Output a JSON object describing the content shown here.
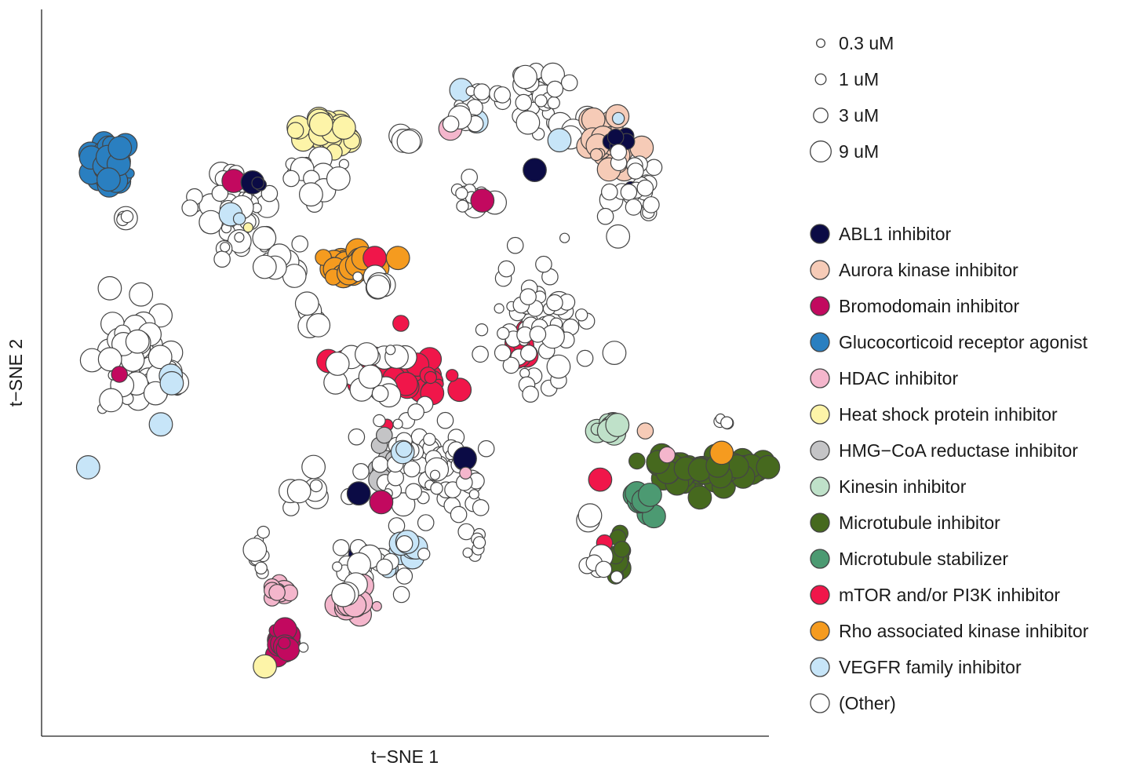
{
  "chart_data": {
    "type": "scatter",
    "xlabel": "t−SNE 1",
    "ylabel": "t−SNE 2",
    "xlim": [
      0,
      1000
    ],
    "ylim": [
      0,
      1000
    ],
    "grid": false,
    "legend_position": "right",
    "size_legend": [
      {
        "label": "0.3 uM",
        "dose": 0.3
      },
      {
        "label": "1 uM",
        "dose": 1
      },
      {
        "label": "3 uM",
        "dose": 3
      },
      {
        "label": "9 uM",
        "dose": 9
      }
    ],
    "classes": [
      {
        "name": "ABL1 inhibitor",
        "color": "#0b0b45"
      },
      {
        "name": "Aurora kinase inhibitor",
        "color": "#f6cbb7"
      },
      {
        "name": "Bromodomain inhibitor",
        "color": "#c2095f"
      },
      {
        "name": "Glucocorticoid receptor agonist",
        "color": "#2a7fc0"
      },
      {
        "name": "HDAC inhibitor",
        "color": "#f4b6cc"
      },
      {
        "name": "Heat shock protein inhibitor",
        "color": "#fdf4a8"
      },
      {
        "name": "HMG−CoA reductase inhibitor",
        "color": "#c4c4c6"
      },
      {
        "name": "Kinesin inhibitor",
        "color": "#bfe1c9"
      },
      {
        "name": "Microtubule inhibitor",
        "color": "#46691e"
      },
      {
        "name": "Microtubule stabilizer",
        "color": "#4c9a72"
      },
      {
        "name": "mTOR and/or PI3K inhibitor",
        "color": "#f0164a"
      },
      {
        "name": "Rho associated kinase inhibitor",
        "color": "#f59b1f"
      },
      {
        "name": "VEGFR family inhibitor",
        "color": "#c7e5f8"
      },
      {
        "name": "(Other)",
        "color": "#ffffff"
      }
    ],
    "clusters": [
      {
        "cls": 3,
        "x": 93,
        "y": 784,
        "sx": 14,
        "sy": 14,
        "n": 48,
        "dose": 9,
        "seed": 11
      },
      {
        "cls": 13,
        "x": 115,
        "y": 714,
        "sx": 3,
        "sy": 3,
        "n": 5,
        "dose": 1,
        "seed": 12
      },
      {
        "cls": 5,
        "x": 390,
        "y": 826,
        "sx": 20,
        "sy": 10,
        "n": 34,
        "dose": 9,
        "seed": 13
      },
      {
        "cls": 13,
        "x": 500,
        "y": 822,
        "sx": 12,
        "sy": 6,
        "n": 4,
        "dose": 9,
        "seed": 14
      },
      {
        "cls": 13,
        "x": 372,
        "y": 770,
        "sx": 16,
        "sy": 16,
        "n": 14,
        "dose": 9,
        "seed": 15
      },
      {
        "cls": 13,
        "x": 260,
        "y": 720,
        "sx": 38,
        "sy": 30,
        "n": 40,
        "dose": 3,
        "seed": 16
      },
      {
        "cls": 2,
        "x": 264,
        "y": 764,
        "sx": 2,
        "sy": 2,
        "n": 1,
        "dose": 9,
        "seed": 17
      },
      {
        "cls": 0,
        "x": 290,
        "y": 762,
        "sx": 2,
        "sy": 2,
        "n": 1,
        "dose": 9,
        "seed": 18
      },
      {
        "cls": 0,
        "x": 300,
        "y": 760,
        "sx": 3,
        "sy": 3,
        "n": 3,
        "dose": 1,
        "seed": 19
      },
      {
        "cls": 12,
        "x": 260,
        "y": 718,
        "sx": 2,
        "sy": 2,
        "n": 1,
        "dose": 9,
        "seed": 20
      },
      {
        "cls": 12,
        "x": 272,
        "y": 712,
        "sx": 3,
        "sy": 3,
        "n": 1,
        "dose": 9,
        "seed": 21
      },
      {
        "cls": 5,
        "x": 284,
        "y": 700,
        "sx": 2,
        "sy": 2,
        "n": 1,
        "dose": 3,
        "seed": 22
      },
      {
        "cls": 11,
        "x": 425,
        "y": 646,
        "sx": 26,
        "sy": 10,
        "n": 26,
        "dose": 9,
        "seed": 23
      },
      {
        "cls": 10,
        "x": 458,
        "y": 658,
        "sx": 2,
        "sy": 2,
        "n": 1,
        "dose": 9,
        "seed": 24
      },
      {
        "cls": 11,
        "x": 490,
        "y": 658,
        "sx": 2,
        "sy": 2,
        "n": 1,
        "dose": 9,
        "seed": 25
      },
      {
        "cls": 13,
        "x": 460,
        "y": 628,
        "sx": 12,
        "sy": 8,
        "n": 6,
        "dose": 9,
        "seed": 26
      },
      {
        "cls": 13,
        "x": 330,
        "y": 646,
        "sx": 12,
        "sy": 8,
        "n": 6,
        "dose": 9,
        "seed": 27
      },
      {
        "cls": 12,
        "x": 577,
        "y": 889,
        "sx": 2,
        "sy": 2,
        "n": 1,
        "dose": 9,
        "seed": 28
      },
      {
        "cls": 1,
        "x": 590,
        "y": 852,
        "sx": 4,
        "sy": 4,
        "n": 2,
        "dose": 9,
        "seed": 29
      },
      {
        "cls": 12,
        "x": 598,
        "y": 846,
        "sx": 2,
        "sy": 2,
        "n": 1,
        "dose": 9,
        "seed": 30
      },
      {
        "cls": 4,
        "x": 562,
        "y": 836,
        "sx": 2,
        "sy": 2,
        "n": 1,
        "dose": 9,
        "seed": 31
      },
      {
        "cls": 13,
        "x": 585,
        "y": 865,
        "sx": 18,
        "sy": 18,
        "n": 12,
        "dose": 3,
        "seed": 32
      },
      {
        "cls": 13,
        "x": 680,
        "y": 880,
        "sx": 30,
        "sy": 20,
        "n": 24,
        "dose": 3,
        "seed": 33
      },
      {
        "cls": 13,
        "x": 720,
        "y": 840,
        "sx": 20,
        "sy": 14,
        "n": 8,
        "dose": 9,
        "seed": 34
      },
      {
        "cls": 0,
        "x": 678,
        "y": 779,
        "sx": 2,
        "sy": 2,
        "n": 1,
        "dose": 9,
        "seed": 35
      },
      {
        "cls": 12,
        "x": 712,
        "y": 820,
        "sx": 2,
        "sy": 2,
        "n": 1,
        "dose": 9,
        "seed": 36
      },
      {
        "cls": 1,
        "x": 780,
        "y": 810,
        "sx": 18,
        "sy": 22,
        "n": 30,
        "dose": 9,
        "seed": 37
      },
      {
        "cls": 0,
        "x": 795,
        "y": 815,
        "sx": 8,
        "sy": 8,
        "n": 7,
        "dose": 3,
        "seed": 38
      },
      {
        "cls": 0,
        "x": 810,
        "y": 755,
        "sx": 2,
        "sy": 2,
        "n": 1,
        "dose": 1,
        "seed": 39
      },
      {
        "cls": 12,
        "x": 793,
        "y": 850,
        "sx": 2,
        "sy": 2,
        "n": 1,
        "dose": 9,
        "seed": 40
      },
      {
        "cls": 13,
        "x": 815,
        "y": 760,
        "sx": 20,
        "sy": 30,
        "n": 24,
        "dose": 3,
        "seed": 41
      },
      {
        "cls": 13,
        "x": 590,
        "y": 743,
        "sx": 12,
        "sy": 10,
        "n": 16,
        "dose": 1,
        "seed": 42
      },
      {
        "cls": 2,
        "x": 606,
        "y": 737,
        "sx": 2,
        "sy": 2,
        "n": 1,
        "dose": 9,
        "seed": 43
      },
      {
        "cls": 10,
        "x": 660,
        "y": 534,
        "sx": 6,
        "sy": 7,
        "n": 10,
        "dose": 9,
        "seed": 44
      },
      {
        "cls": 13,
        "x": 690,
        "y": 570,
        "sx": 40,
        "sy": 45,
        "n": 55,
        "dose": 3,
        "seed": 45
      },
      {
        "cls": 10,
        "x": 430,
        "y": 512,
        "sx": 18,
        "sy": 8,
        "n": 14,
        "dose": 9,
        "seed": 46
      },
      {
        "cls": 10,
        "x": 520,
        "y": 496,
        "sx": 22,
        "sy": 12,
        "n": 24,
        "dose": 9,
        "seed": 47
      },
      {
        "cls": 10,
        "x": 494,
        "y": 568,
        "sx": 2,
        "sy": 2,
        "n": 1,
        "dose": 3,
        "seed": 48
      },
      {
        "cls": 10,
        "x": 475,
        "y": 428,
        "sx": 2,
        "sy": 2,
        "n": 1,
        "dose": 1,
        "seed": 49
      },
      {
        "cls": 10,
        "x": 474,
        "y": 470,
        "sx": 2,
        "sy": 2,
        "n": 1,
        "dose": 3,
        "seed": 50
      },
      {
        "cls": 13,
        "x": 455,
        "y": 500,
        "sx": 28,
        "sy": 22,
        "n": 16,
        "dose": 9,
        "seed": 51
      },
      {
        "cls": 13,
        "x": 130,
        "y": 510,
        "sx": 30,
        "sy": 44,
        "n": 55,
        "dose": 9,
        "seed": 52
      },
      {
        "cls": 2,
        "x": 107,
        "y": 498,
        "sx": 2,
        "sy": 2,
        "n": 1,
        "dose": 9,
        "seed": 53
      },
      {
        "cls": 12,
        "x": 180,
        "y": 491,
        "sx": 4,
        "sy": 4,
        "n": 2,
        "dose": 9,
        "seed": 54
      },
      {
        "cls": 12,
        "x": 164,
        "y": 429,
        "sx": 3,
        "sy": 3,
        "n": 1,
        "dose": 9,
        "seed": 55
      },
      {
        "cls": 12,
        "x": 64,
        "y": 370,
        "sx": 2,
        "sy": 2,
        "n": 1,
        "dose": 9,
        "seed": 56
      },
      {
        "cls": 6,
        "x": 465,
        "y": 382,
        "sx": 8,
        "sy": 14,
        "n": 10,
        "dose": 3,
        "seed": 57
      },
      {
        "cls": 13,
        "x": 500,
        "y": 370,
        "sx": 40,
        "sy": 40,
        "n": 40,
        "dose": 3,
        "seed": 58
      },
      {
        "cls": 13,
        "x": 570,
        "y": 360,
        "sx": 22,
        "sy": 30,
        "n": 24,
        "dose": 3,
        "seed": 59
      },
      {
        "cls": 13,
        "x": 380,
        "y": 340,
        "sx": 20,
        "sy": 14,
        "n": 8,
        "dose": 9,
        "seed": 60
      },
      {
        "cls": 0,
        "x": 436,
        "y": 334,
        "sx": 2,
        "sy": 2,
        "n": 1,
        "dose": 9,
        "seed": 61
      },
      {
        "cls": 2,
        "x": 467,
        "y": 322,
        "sx": 2,
        "sy": 2,
        "n": 1,
        "dose": 9,
        "seed": 62
      },
      {
        "cls": 0,
        "x": 582,
        "y": 382,
        "sx": 2,
        "sy": 2,
        "n": 1,
        "dose": 9,
        "seed": 63
      },
      {
        "cls": 4,
        "x": 583,
        "y": 362,
        "sx": 2,
        "sy": 2,
        "n": 1,
        "dose": 3,
        "seed": 64
      },
      {
        "cls": 12,
        "x": 497,
        "y": 392,
        "sx": 6,
        "sy": 3,
        "n": 2,
        "dose": 3,
        "seed": 65
      },
      {
        "cls": 0,
        "x": 438,
        "y": 250,
        "sx": 2,
        "sy": 2,
        "n": 1,
        "dose": 9,
        "seed": 66
      },
      {
        "cls": 12,
        "x": 500,
        "y": 256,
        "sx": 14,
        "sy": 12,
        "n": 8,
        "dose": 9,
        "seed": 67
      },
      {
        "cls": 12,
        "x": 482,
        "y": 230,
        "sx": 4,
        "sy": 2,
        "n": 2,
        "dose": 3,
        "seed": 68
      },
      {
        "cls": 13,
        "x": 450,
        "y": 240,
        "sx": 30,
        "sy": 24,
        "n": 22,
        "dose": 3,
        "seed": 69
      },
      {
        "cls": 4,
        "x": 430,
        "y": 180,
        "sx": 12,
        "sy": 14,
        "n": 18,
        "dose": 9,
        "seed": 70
      },
      {
        "cls": 13,
        "x": 418,
        "y": 196,
        "sx": 6,
        "sy": 4,
        "n": 3,
        "dose": 9,
        "seed": 71
      },
      {
        "cls": 4,
        "x": 325,
        "y": 198,
        "sx": 8,
        "sy": 8,
        "n": 10,
        "dose": 3,
        "seed": 72
      },
      {
        "cls": 13,
        "x": 300,
        "y": 250,
        "sx": 10,
        "sy": 14,
        "n": 12,
        "dose": 1,
        "seed": 73
      },
      {
        "cls": 2,
        "x": 332,
        "y": 127,
        "sx": 6,
        "sy": 10,
        "n": 16,
        "dose": 9,
        "seed": 74
      },
      {
        "cls": 5,
        "x": 307,
        "y": 96,
        "sx": 2,
        "sy": 2,
        "n": 1,
        "dose": 9,
        "seed": 75
      },
      {
        "cls": 13,
        "x": 360,
        "y": 122,
        "sx": 4,
        "sy": 4,
        "n": 1,
        "dose": 9,
        "seed": 76
      },
      {
        "cls": 13,
        "x": 365,
        "y": 580,
        "sx": 14,
        "sy": 14,
        "n": 6,
        "dose": 9,
        "seed": 77
      },
      {
        "cls": 8,
        "x": 905,
        "y": 366,
        "sx": 40,
        "sy": 12,
        "n": 55,
        "dose": 9,
        "seed": 78
      },
      {
        "cls": 11,
        "x": 935,
        "y": 390,
        "sx": 2,
        "sy": 2,
        "n": 1,
        "dose": 9,
        "seed": 79
      },
      {
        "cls": 4,
        "x": 860,
        "y": 387,
        "sx": 2,
        "sy": 2,
        "n": 1,
        "dose": 3,
        "seed": 80
      },
      {
        "cls": 9,
        "x": 826,
        "y": 324,
        "sx": 10,
        "sy": 8,
        "n": 12,
        "dose": 9,
        "seed": 81
      },
      {
        "cls": 8,
        "x": 793,
        "y": 248,
        "sx": 4,
        "sy": 14,
        "n": 12,
        "dose": 3,
        "seed": 82
      },
      {
        "cls": 10,
        "x": 774,
        "y": 266,
        "sx": 2,
        "sy": 2,
        "n": 1,
        "dose": 9,
        "seed": 83
      },
      {
        "cls": 13,
        "x": 770,
        "y": 235,
        "sx": 10,
        "sy": 10,
        "n": 7,
        "dose": 3,
        "seed": 84
      },
      {
        "cls": 13,
        "x": 750,
        "y": 297,
        "sx": 4,
        "sy": 4,
        "n": 2,
        "dose": 9,
        "seed": 85
      },
      {
        "cls": 10,
        "x": 768,
        "y": 353,
        "sx": 2,
        "sy": 2,
        "n": 1,
        "dose": 9,
        "seed": 86
      },
      {
        "cls": 7,
        "x": 785,
        "y": 423,
        "sx": 8,
        "sy": 8,
        "n": 10,
        "dose": 9,
        "seed": 87
      },
      {
        "cls": 1,
        "x": 830,
        "y": 420,
        "sx": 2,
        "sy": 2,
        "n": 1,
        "dose": 9,
        "seed": 88
      },
      {
        "cls": 13,
        "x": 940,
        "y": 430,
        "sx": 6,
        "sy": 6,
        "n": 4,
        "dose": 1,
        "seed": 89
      },
      {
        "cls": 13,
        "x": 600,
        "y": 260,
        "sx": 8,
        "sy": 8,
        "n": 6,
        "dose": 1,
        "seed": 90
      }
    ]
  }
}
